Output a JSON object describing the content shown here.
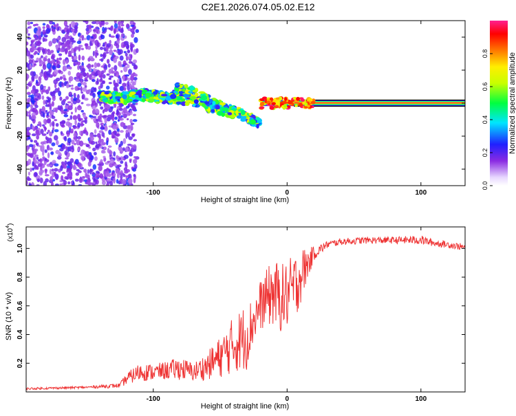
{
  "title": "C2E1.2026.074.05.02.E12",
  "chart_data": [
    {
      "type": "heatmap",
      "xlabel": "Height of straight line (km)",
      "ylabel": "Frequency (Hz)",
      "xlim": [
        -195,
        133
      ],
      "ylim": [
        -50,
        50
      ],
      "xticks": [
        -100,
        0,
        100
      ],
      "yticks": [
        -40,
        -20,
        0,
        20,
        40
      ],
      "colorbar": {
        "label": "Normalized spectral amplitude",
        "range": [
          0.0,
          1.0
        ],
        "ticks": [
          0.0,
          0.2,
          0.4,
          0.6,
          0.8
        ]
      },
      "regions": [
        {
          "name": "noise",
          "x_range": [
            -195,
            -120
          ],
          "freq_range": [
            -50,
            50
          ],
          "amplitude": [
            0.1,
            0.25
          ]
        },
        {
          "name": "drift",
          "x_range": [
            -140,
            -20
          ],
          "freq_center": [
            4,
            3,
            5,
            3,
            2,
            -3,
            -6,
            -12
          ],
          "amplitude": [
            0.2,
            0.7
          ]
        },
        {
          "name": "carrier",
          "x_range": [
            -20,
            133
          ],
          "freq_center": 0,
          "amplitude": [
            0.8,
            1.0
          ]
        }
      ]
    },
    {
      "type": "line",
      "title": "",
      "xlabel": "Height of straight line (km)",
      "ylabel": "SNR (10 * v/v)",
      "y_scale_label": "(x10",
      "y_scale_exp": "4",
      "xlim": [
        -195,
        133
      ],
      "ylim": [
        0,
        1.15
      ],
      "xticks": [
        -100,
        0,
        100
      ],
      "yticks": [
        0.2,
        0.4,
        0.6,
        0.8,
        1.0
      ],
      "series": [
        {
          "name": "SNR",
          "color": "#ee3333",
          "x": [
            -195,
            -150,
            -125,
            -120,
            -110,
            -100,
            -90,
            -80,
            -70,
            -60,
            -50,
            -40,
            -30,
            -25,
            -20,
            -15,
            -10,
            -5,
            0,
            5,
            10,
            15,
            20,
            30,
            40,
            60,
            80,
            100,
            110,
            120,
            133
          ],
          "y": [
            0.02,
            0.03,
            0.04,
            0.08,
            0.12,
            0.12,
            0.13,
            0.14,
            0.12,
            0.15,
            0.2,
            0.27,
            0.32,
            0.45,
            0.55,
            0.6,
            0.62,
            0.58,
            0.6,
            0.65,
            0.75,
            0.85,
            0.95,
            1.02,
            1.04,
            1.05,
            1.05,
            1.05,
            1.03,
            1.02,
            1.0
          ],
          "spread": [
            0.01,
            0.01,
            0.02,
            0.05,
            0.08,
            0.07,
            0.08,
            0.1,
            0.08,
            0.12,
            0.18,
            0.25,
            0.3,
            0.2,
            0.22,
            0.25,
            0.3,
            0.3,
            0.3,
            0.3,
            0.25,
            0.15,
            0.06,
            0.03,
            0.03,
            0.03,
            0.03,
            0.04,
            0.03,
            0.03,
            0.03
          ]
        }
      ]
    }
  ]
}
